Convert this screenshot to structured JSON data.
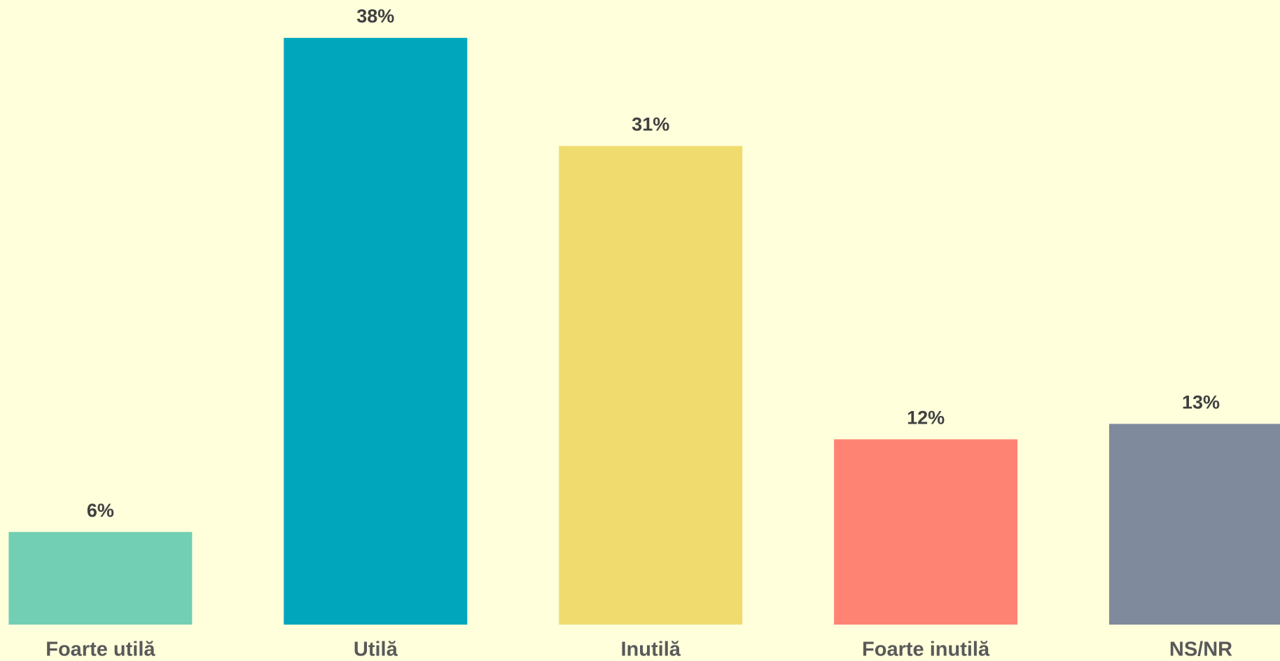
{
  "chart_data": {
    "type": "bar",
    "categories": [
      "Foarte utilă",
      "Utilă",
      "Inutilă",
      "Foarte inutilă",
      "NS/NR"
    ],
    "values": [
      6,
      38,
      31,
      12,
      13
    ],
    "value_labels": [
      "6%",
      "38%",
      "31%",
      "12%",
      "13%"
    ],
    "colors": [
      "#72cfb4",
      "#00a6bb",
      "#f0dc6e",
      "#ff8373",
      "#7f8a9c"
    ],
    "ylim": [
      0,
      40
    ]
  }
}
